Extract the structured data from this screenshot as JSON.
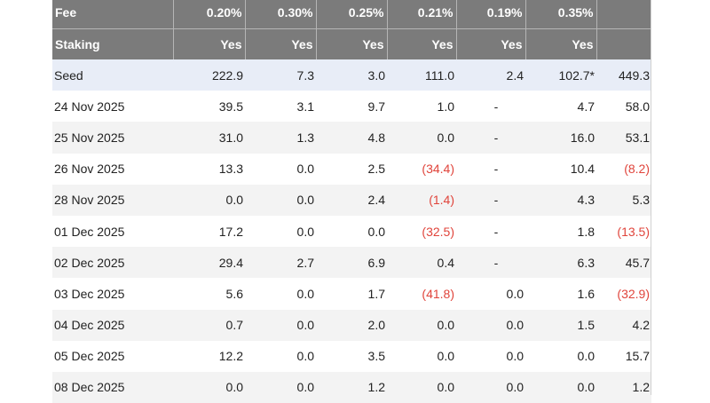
{
  "header": {
    "fee": {
      "label": "Fee",
      "values": [
        "0.20%",
        "0.30%",
        "0.25%",
        "0.21%",
        "0.19%",
        "0.35%",
        ""
      ]
    },
    "staking": {
      "label": "Staking",
      "values": [
        "Yes",
        "Yes",
        "Yes",
        "Yes",
        "Yes",
        "Yes",
        ""
      ]
    }
  },
  "rows": [
    {
      "label": "Seed",
      "cells": [
        "222.9",
        "7.3",
        "3.0",
        "111.0",
        "2.4",
        "102.7*",
        "449.3"
      ]
    },
    {
      "label": "24 Nov 2025",
      "cells": [
        "39.5",
        "3.1",
        "9.7",
        "1.0",
        "-",
        "4.7",
        "58.0"
      ]
    },
    {
      "label": "25 Nov 2025",
      "cells": [
        "31.0",
        "1.3",
        "4.8",
        "0.0",
        "-",
        "16.0",
        "53.1"
      ]
    },
    {
      "label": "26 Nov 2025",
      "cells": [
        "13.3",
        "0.0",
        "2.5",
        "(34.4)",
        "-",
        "10.4",
        "(8.2)"
      ]
    },
    {
      "label": "28 Nov 2025",
      "cells": [
        "0.0",
        "0.0",
        "2.4",
        "(1.4)",
        "-",
        "4.3",
        "5.3"
      ]
    },
    {
      "label": "01 Dec 2025",
      "cells": [
        "17.2",
        "0.0",
        "0.0",
        "(32.5)",
        "-",
        "1.8",
        "(13.5)"
      ]
    },
    {
      "label": "02 Dec 2025",
      "cells": [
        "29.4",
        "2.7",
        "6.9",
        "0.4",
        "-",
        "6.3",
        "45.7"
      ]
    },
    {
      "label": "03 Dec 2025",
      "cells": [
        "5.6",
        "0.0",
        "1.7",
        "(41.8)",
        "0.0",
        "1.6",
        "(32.9)"
      ]
    },
    {
      "label": "04 Dec 2025",
      "cells": [
        "0.7",
        "0.0",
        "2.0",
        "0.0",
        "0.0",
        "1.5",
        "4.2"
      ]
    },
    {
      "label": "05 Dec 2025",
      "cells": [
        "12.2",
        "0.0",
        "3.5",
        "0.0",
        "0.0",
        "0.0",
        "15.7"
      ]
    },
    {
      "label": "08 Dec 2025",
      "cells": [
        "0.0",
        "0.0",
        "1.2",
        "0.0",
        "0.0",
        "0.0",
        "1.2"
      ]
    }
  ],
  "colors": {
    "header_bg": "#7b7b7b",
    "seed_bg": "#e8edf7",
    "negative": "#e0443b"
  }
}
